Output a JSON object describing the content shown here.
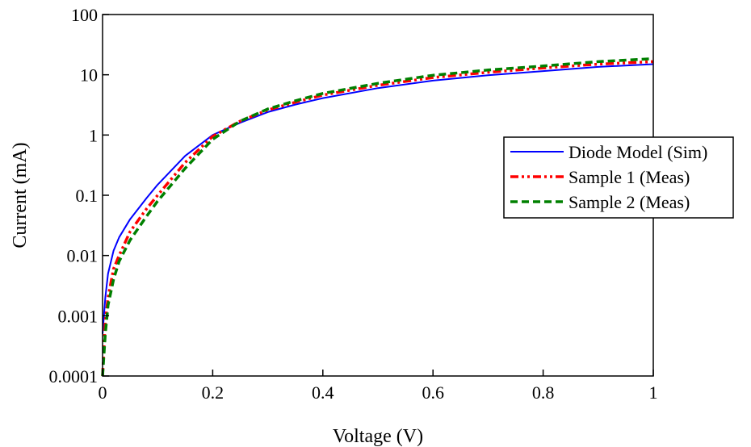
{
  "chart_data": {
    "type": "line",
    "xlabel": "Voltage (V)",
    "ylabel": "Current (mA)",
    "xlim": [
      0,
      1
    ],
    "ylim": [
      0.0001,
      100
    ],
    "yscale": "log",
    "grid": false,
    "legend_position": "right",
    "x_ticks": [
      "0",
      "0.2",
      "0.4",
      "0.6",
      "0.8",
      "1"
    ],
    "y_ticks": [
      "0.0001",
      "0.001",
      "0.01",
      "0.1",
      "1",
      "10",
      "100"
    ],
    "series": [
      {
        "name": "Diode Model (Sim)",
        "color": "#0000ff",
        "style": "solid",
        "x": [
          0.0,
          0.005,
          0.01,
          0.02,
          0.03,
          0.05,
          0.08,
          0.1,
          0.15,
          0.2,
          0.25,
          0.3,
          0.35,
          0.4,
          0.5,
          0.6,
          0.7,
          0.8,
          0.9,
          1.0
        ],
        "y": [
          0.0005,
          0.002,
          0.005,
          0.012,
          0.02,
          0.04,
          0.09,
          0.15,
          0.45,
          1.0,
          1.6,
          2.4,
          3.2,
          4.1,
          6.0,
          8.0,
          9.8,
          11.5,
          13.5,
          15
        ]
      },
      {
        "name": "Sample 1 (Meas)",
        "color": "#ff0000",
        "style": "dash-dot-dot",
        "x": [
          0.0,
          0.005,
          0.01,
          0.02,
          0.03,
          0.05,
          0.08,
          0.1,
          0.15,
          0.2,
          0.25,
          0.3,
          0.35,
          0.4,
          0.5,
          0.6,
          0.7,
          0.8,
          0.9,
          1.0
        ],
        "y": [
          0.0001,
          0.0008,
          0.002,
          0.006,
          0.01,
          0.025,
          0.06,
          0.1,
          0.35,
          0.95,
          1.7,
          2.6,
          3.5,
          4.6,
          6.7,
          9.0,
          11.0,
          13.0,
          15.0,
          16.5
        ]
      },
      {
        "name": "Sample 2 (Meas)",
        "color": "#008000",
        "style": "dashed",
        "x": [
          0.0,
          0.005,
          0.01,
          0.02,
          0.03,
          0.05,
          0.08,
          0.1,
          0.15,
          0.2,
          0.25,
          0.3,
          0.35,
          0.4,
          0.5,
          0.6,
          0.7,
          0.8,
          0.9,
          1.0
        ],
        "y": [
          0.0001,
          0.0005,
          0.0015,
          0.004,
          0.008,
          0.018,
          0.045,
          0.08,
          0.28,
          0.85,
          1.7,
          2.7,
          3.7,
          4.9,
          7.2,
          9.8,
          12.0,
          14.0,
          16.5,
          18.5
        ]
      }
    ]
  }
}
